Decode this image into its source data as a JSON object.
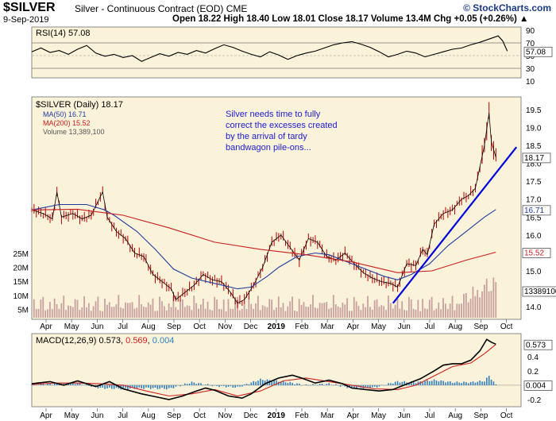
{
  "header": {
    "symbol": "$SILVER",
    "description": "Silver - Continuous Contract (EOD) CME",
    "source": "© StockCharts.com",
    "date": "9-Sep-2019",
    "ohlc": "Open 18.22  High 18.40  Low 18.01  Close 18.17  Volume 13.4M  Chg +0.05 (+0.26%) ▲"
  },
  "annotation": [
    "Silver needs time to fully",
    "correct the excesses created",
    "by the arrival of tardy",
    "bandwagon pile-ons..."
  ],
  "colors": {
    "panel_bg": "#fbf3d9",
    "ma50": "#1e3ca0",
    "ma200": "#c81e1e",
    "trend": "#0000dd",
    "volume": "#c8a0a0",
    "macd_hist": "#2f7fbf"
  },
  "chart_data": [
    {
      "type": "line",
      "title": "RSI(14) 57.08",
      "legend": "top-left",
      "ylim": [
        15,
        95
      ],
      "yticks": [
        90,
        70,
        50,
        30,
        10
      ],
      "reference_lines": [
        70,
        30
      ],
      "last_value": "57.08",
      "series": [
        {
          "name": "RSI(14)",
          "points": [
            [
              0,
              56
            ],
            [
              4,
              62
            ],
            [
              8,
              55
            ],
            [
              12,
              58
            ],
            [
              16,
              52
            ],
            [
              20,
              60
            ],
            [
              24,
              66
            ],
            [
              28,
              54
            ],
            [
              32,
              49
            ],
            [
              36,
              52
            ],
            [
              40,
              47
            ],
            [
              44,
              50
            ],
            [
              48,
              41
            ],
            [
              52,
              47
            ],
            [
              56,
              53
            ],
            [
              60,
              49
            ],
            [
              64,
              55
            ],
            [
              68,
              52
            ],
            [
              72,
              58
            ],
            [
              76,
              54
            ],
            [
              80,
              61
            ],
            [
              84,
              67
            ],
            [
              88,
              63
            ],
            [
              92,
              57
            ],
            [
              96,
              52
            ],
            [
              100,
              48
            ],
            [
              104,
              56
            ],
            [
              108,
              51
            ],
            [
              112,
              44
            ],
            [
              116,
              50
            ],
            [
              120,
              54
            ],
            [
              124,
              57
            ],
            [
              128,
              62
            ],
            [
              132,
              67
            ],
            [
              136,
              70
            ],
            [
              140,
              72
            ],
            [
              144,
              68
            ],
            [
              148,
              63
            ],
            [
              152,
              56
            ],
            [
              156,
              48
            ],
            [
              160,
              52
            ],
            [
              164,
              57
            ],
            [
              168,
              54
            ],
            [
              172,
              48
            ],
            [
              176,
              52
            ],
            [
              180,
              56
            ],
            [
              184,
              60
            ],
            [
              188,
              62
            ],
            [
              192,
              67
            ],
            [
              196,
              71
            ],
            [
              200,
              76
            ],
            [
              204,
              81
            ],
            [
              206,
              73
            ],
            [
              208,
              57
            ]
          ]
        }
      ]
    },
    {
      "type": "line",
      "title": "$SILVER (Daily) 18.17",
      "legend": "top-left",
      "legend_entries": [
        "MA(50) 16.71",
        "MA(200) 15.52",
        "Volume 13,389,100"
      ],
      "ylim": [
        13.65,
        19.85
      ],
      "yticks": [
        19.5,
        19.0,
        18.5,
        18.0,
        17.5,
        17.0,
        16.5,
        16.0,
        15.5,
        15.0,
        14.5,
        14.0
      ],
      "last_value": "18.17",
      "value_labels": [
        "16.71",
        "15.52",
        "13389100"
      ],
      "x_months": [
        "Apr",
        "May",
        "Jun",
        "Jul",
        "Aug",
        "Sep",
        "Oct",
        "Nov",
        "Dec",
        "2019",
        "Feb",
        "Mar",
        "Apr",
        "May",
        "Jun",
        "Jul",
        "Aug",
        "Sep",
        "Oct"
      ],
      "volume_ticks": [
        "25M",
        "20M",
        "15M",
        "10M",
        "5M"
      ],
      "series": [
        {
          "name": "$SILVER",
          "points": [
            [
              0,
              16.7
            ],
            [
              5,
              16.6
            ],
            [
              9,
              16.45
            ],
            [
              11,
              17.2
            ],
            [
              13,
              16.5
            ],
            [
              18,
              16.6
            ],
            [
              22,
              16.45
            ],
            [
              26,
              16.55
            ],
            [
              31,
              17.2
            ],
            [
              33,
              16.5
            ],
            [
              37,
              16.1
            ],
            [
              41,
              15.9
            ],
            [
              45,
              15.5
            ],
            [
              49,
              15.4
            ],
            [
              53,
              14.9
            ],
            [
              57,
              14.7
            ],
            [
              61,
              14.5
            ],
            [
              63,
              14.2
            ],
            [
              67,
              14.4
            ],
            [
              71,
              14.6
            ],
            [
              75,
              14.9
            ],
            [
              79,
              14.75
            ],
            [
              83,
              14.7
            ],
            [
              87,
              14.4
            ],
            [
              90,
              14.1
            ],
            [
              93,
              14.2
            ],
            [
              97,
              14.6
            ],
            [
              101,
              15.1
            ],
            [
              105,
              15.8
            ],
            [
              109,
              16.0
            ],
            [
              113,
              15.65
            ],
            [
              117,
              15.3
            ],
            [
              121,
              15.9
            ],
            [
              125,
              15.8
            ],
            [
              129,
              15.4
            ],
            [
              133,
              15.3
            ],
            [
              137,
              15.5
            ],
            [
              141,
              15.2
            ],
            [
              145,
              14.95
            ],
            [
              149,
              14.8
            ],
            [
              153,
              14.7
            ],
            [
              157,
              14.65
            ],
            [
              160,
              14.55
            ],
            [
              164,
              15.2
            ],
            [
              168,
              15.15
            ],
            [
              171,
              15.6
            ],
            [
              173,
              15.45
            ],
            [
              176,
              16.3
            ],
            [
              180,
              16.6
            ],
            [
              184,
              16.7
            ],
            [
              188,
              17.0
            ],
            [
              191,
              17.1
            ],
            [
              194,
              17.3
            ],
            [
              196,
              17.9
            ],
            [
              198,
              18.5
            ],
            [
              200,
              19.4
            ],
            [
              201,
              18.6
            ],
            [
              203,
              18.17
            ]
          ]
        },
        {
          "name": "MA(50)",
          "points": [
            [
              0,
              16.7
            ],
            [
              12,
              16.85
            ],
            [
              24,
              16.85
            ],
            [
              32,
              16.7
            ],
            [
              36,
              16.55
            ],
            [
              46,
              16.1
            ],
            [
              54,
              15.6
            ],
            [
              62,
              15.05
            ],
            [
              70,
              14.8
            ],
            [
              80,
              14.65
            ],
            [
              90,
              14.5
            ],
            [
              96,
              14.55
            ],
            [
              103,
              14.85
            ],
            [
              108,
              15.1
            ],
            [
              116,
              15.4
            ],
            [
              124,
              15.5
            ],
            [
              130,
              15.45
            ],
            [
              138,
              15.25
            ],
            [
              146,
              15.05
            ],
            [
              154,
              14.85
            ],
            [
              160,
              14.75
            ],
            [
              166,
              14.9
            ],
            [
              174,
              15.2
            ],
            [
              182,
              15.7
            ],
            [
              190,
              16.1
            ],
            [
              198,
              16.5
            ],
            [
              203,
              16.71
            ]
          ]
        },
        {
          "name": "MA(200)",
          "points": [
            [
              0,
              16.7
            ],
            [
              20,
              16.72
            ],
            [
              40,
              16.55
            ],
            [
              60,
              16.2
            ],
            [
              80,
              15.8
            ],
            [
              100,
              15.6
            ],
            [
              120,
              15.45
            ],
            [
              140,
              15.25
            ],
            [
              160,
              14.95
            ],
            [
              175,
              15.0
            ],
            [
              190,
              15.3
            ],
            [
              203,
              15.52
            ]
          ]
        },
        {
          "name": "Trendline",
          "points": [
            [
              158,
              14.1
            ],
            [
              212,
              18.45
            ]
          ]
        }
      ]
    },
    {
      "type": "line",
      "title": "MACD(12,26,9) 0.573, 0.569, 0.004",
      "legend": "top-left",
      "ylim": [
        -0.3,
        0.72
      ],
      "yticks": [
        0.4,
        0.2,
        0.0,
        -0.2
      ],
      "value_labels": [
        "0.573",
        "0.004"
      ],
      "series": [
        {
          "name": "MACD(12,26,9)",
          "points": [
            [
              0,
              0.02
            ],
            [
              8,
              0.05
            ],
            [
              14,
              0.0
            ],
            [
              20,
              0.06
            ],
            [
              28,
              -0.02
            ],
            [
              34,
              0.05
            ],
            [
              40,
              -0.05
            ],
            [
              48,
              -0.12
            ],
            [
              54,
              -0.16
            ],
            [
              60,
              -0.2
            ],
            [
              66,
              -0.15
            ],
            [
              72,
              -0.08
            ],
            [
              76,
              -0.04
            ],
            [
              80,
              -0.07
            ],
            [
              86,
              -0.15
            ],
            [
              92,
              -0.18
            ],
            [
              96,
              -0.12
            ],
            [
              102,
              0.02
            ],
            [
              108,
              0.1
            ],
            [
              114,
              0.14
            ],
            [
              118,
              0.1
            ],
            [
              124,
              0.03
            ],
            [
              130,
              0.07
            ],
            [
              136,
              0.02
            ],
            [
              140,
              -0.04
            ],
            [
              146,
              -0.06
            ],
            [
              152,
              -0.08
            ],
            [
              158,
              -0.06
            ],
            [
              162,
              -0.01
            ],
            [
              166,
              0.04
            ],
            [
              170,
              0.09
            ],
            [
              176,
              0.2
            ],
            [
              180,
              0.28
            ],
            [
              184,
              0.3
            ],
            [
              188,
              0.3
            ],
            [
              192,
              0.35
            ],
            [
              196,
              0.48
            ],
            [
              199,
              0.64
            ],
            [
              201,
              0.6
            ],
            [
              203,
              0.573
            ]
          ]
        },
        {
          "name": "Signal",
          "points": [
            [
              0,
              0.01
            ],
            [
              10,
              0.03
            ],
            [
              20,
              0.03
            ],
            [
              30,
              0.02
            ],
            [
              40,
              0.0
            ],
            [
              50,
              -0.08
            ],
            [
              60,
              -0.15
            ],
            [
              70,
              -0.12
            ],
            [
              80,
              -0.06
            ],
            [
              90,
              -0.15
            ],
            [
              100,
              -0.08
            ],
            [
              110,
              0.06
            ],
            [
              120,
              0.1
            ],
            [
              130,
              0.05
            ],
            [
              140,
              0.0
            ],
            [
              150,
              -0.05
            ],
            [
              160,
              -0.06
            ],
            [
              168,
              0.0
            ],
            [
              176,
              0.13
            ],
            [
              184,
              0.26
            ],
            [
              192,
              0.31
            ],
            [
              198,
              0.44
            ],
            [
              203,
              0.569
            ]
          ]
        },
        {
          "name": "Histogram",
          "points": [
            [
              0,
              0.01
            ],
            [
              10,
              0.02
            ],
            [
              20,
              0.03
            ],
            [
              30,
              -0.04
            ],
            [
              40,
              -0.05
            ],
            [
              50,
              -0.04
            ],
            [
              60,
              -0.05
            ],
            [
              70,
              0.04
            ],
            [
              80,
              -0.01
            ],
            [
              90,
              -0.03
            ],
            [
              100,
              0.08
            ],
            [
              110,
              0.05
            ],
            [
              120,
              0.0
            ],
            [
              130,
              0.02
            ],
            [
              140,
              -0.04
            ],
            [
              150,
              -0.03
            ],
            [
              160,
              0.05
            ],
            [
              168,
              0.04
            ],
            [
              176,
              0.07
            ],
            [
              184,
              0.04
            ],
            [
              192,
              0.04
            ],
            [
              198,
              0.06
            ],
            [
              200,
              0.13
            ],
            [
              203,
              0.004
            ]
          ]
        }
      ]
    }
  ]
}
